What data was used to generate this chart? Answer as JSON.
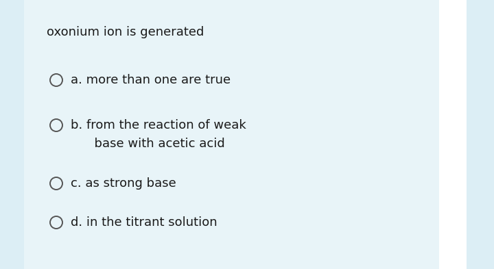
{
  "bg_main": "#e8f4f8",
  "bg_left_strip": "#eaf5f9",
  "bg_right_strip": "#dceef5",
  "bg_white_center": "#ffffff",
  "title": "oxonium ion is generated",
  "title_fontsize": 13,
  "title_color": "#1a1a1a",
  "options": [
    {
      "label": "a. more than one are true",
      "line2": null
    },
    {
      "label": "b. from the reaction of weak",
      "line2": "      base with acetic acid"
    },
    {
      "label": "c. as strong base",
      "line2": null
    },
    {
      "label": "d. in the titrant solution",
      "line2": null
    }
  ],
  "option_fontsize": 13,
  "option_color": "#1a1a1a",
  "circle_color": "#555555",
  "circle_linewidth": 1.4,
  "fig_width": 7.2,
  "fig_height": 3.93,
  "dpi": 100
}
